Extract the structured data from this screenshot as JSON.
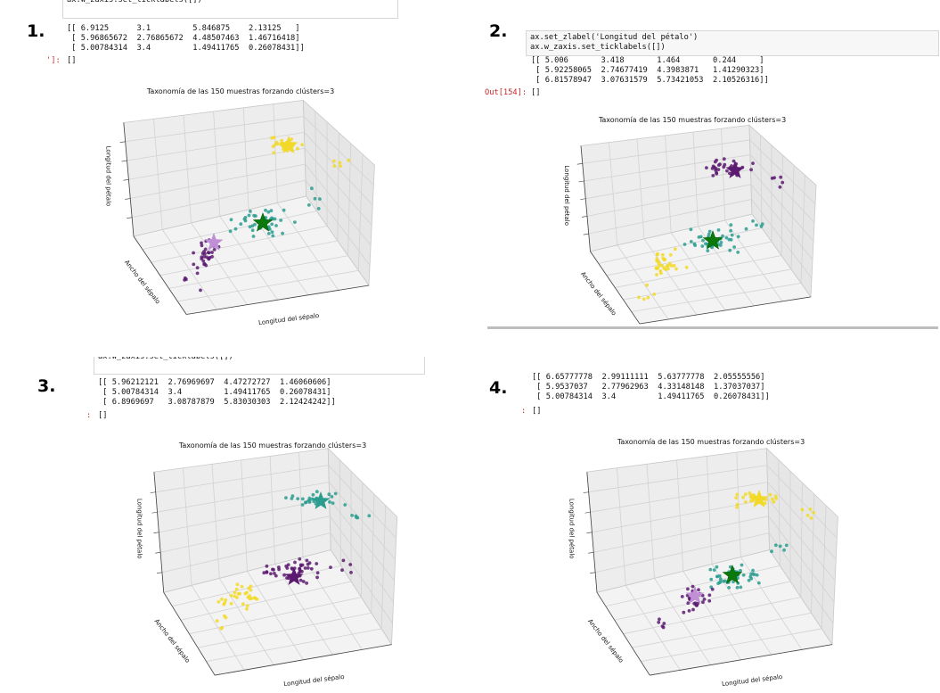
{
  "panels": [
    {
      "label": "1.",
      "code": [
        "ax.w_zaxis.set_ticklabels([])"
      ],
      "matrix": [
        "[[ 6.9125      3.1         5.846875    2.13125   ]",
        " [ 5.96865672  2.76865672  4.48507463  1.46716418]",
        " [ 5.00784314  3.4         1.49411765  0.26078431]]"
      ],
      "out_prompt": "']:",
      "output": "[]",
      "plot": {
        "title": "Taxonomía de las 150 muestras forzando clústers=3",
        "zlabel": "Longitud del pétalo",
        "ylabel": "Ancho del sépalo",
        "xlabel": "Longitud del sépalo"
      }
    },
    {
      "label": "2.",
      "code": [
        "ax.set_zlabel('Longitud del pétalo')",
        "ax.w_zaxis.set_ticklabels([])"
      ],
      "matrix": [
        "[[ 5.006       3.418       1.464       0.244     ]",
        " [ 5.92258065  2.74677419  4.3983871   1.41290323]",
        " [ 6.81578947  3.07631579  5.73421053  2.10526316]]"
      ],
      "out_prompt": "Out[154]:",
      "output": "[]",
      "plot": {
        "title": "Taxonomía de las 150 muestras forzando clústers=3",
        "zlabel": "Longitud del pétalo",
        "ylabel": "Ancho del sépalo"
      }
    },
    {
      "label": "3.",
      "code": [
        "ax.w_zaxis.set_ticklabels([])"
      ],
      "matrix": [
        "[[ 5.96212121  2.76969697  4.47272727  1.46060606]",
        " [ 5.00784314  3.4         1.49411765  0.26078431]",
        " [ 6.8969697   3.08787879  5.83030303  2.12424242]]"
      ],
      "out_prompt": ":",
      "output": "[]",
      "plot": {
        "title": "Taxonomía de las 150 muestras forzando clústers=3",
        "zlabel": "Longitud del pétalo",
        "ylabel": "Ancho del sépalo",
        "xlabel": "Longitud del sépalo"
      }
    },
    {
      "label": "4.",
      "matrix": [
        "[[ 6.65777778  2.99111111  5.63777778  2.05555556]",
        " [ 5.9537037   2.77962963  4.33148148  1.37037037]",
        " [ 5.00784314  3.4         1.49411765  0.26078431]]"
      ],
      "out_prompt": ":",
      "output": "[]",
      "plot": {
        "title": "Taxonomía de las 150 muestras forzando clústers=3",
        "zlabel": "Longitud del pétalo",
        "ylabel": "Ancho del sépalo",
        "xlabel": "Longitud del sépalo"
      }
    }
  ]
}
